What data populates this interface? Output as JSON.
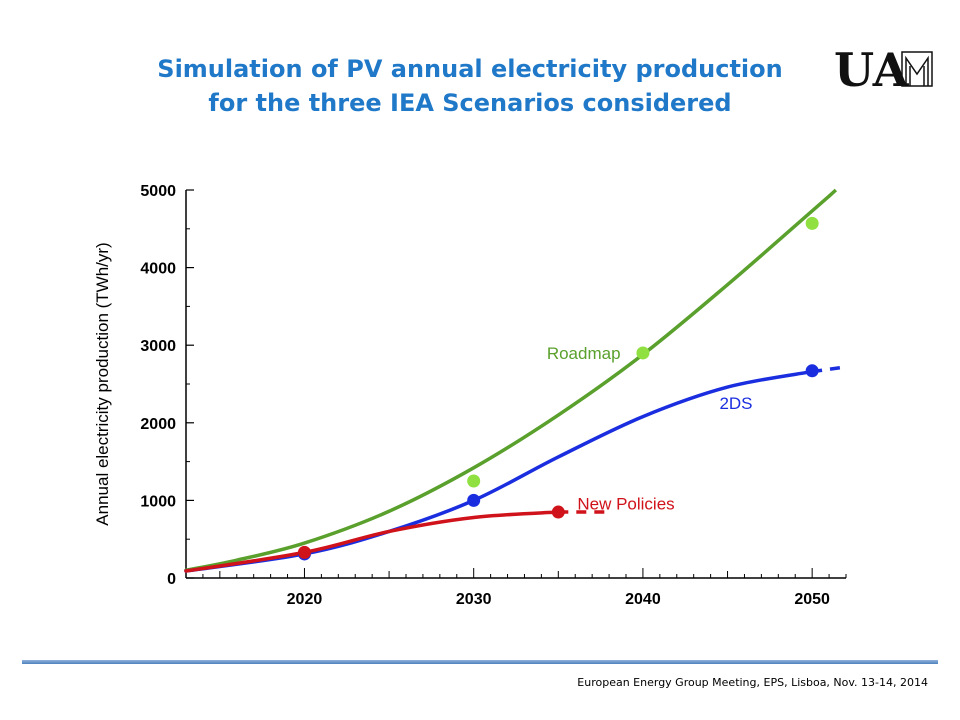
{
  "slide": {
    "title_line1": "Simulation of PV annual electricity  production",
    "title_line2": "for the three IEA Scenarios considered",
    "logo_text": "UAM",
    "footer": "European Energy Group Meeting, EPS, Lisboa, Nov. 13-14, 2014",
    "title_color": "#1f78c8"
  },
  "chart_data": {
    "type": "line",
    "title": "",
    "xlabel": "",
    "ylabel": "Annual electricity production (TWh/yr)",
    "xlim": [
      2013,
      2052
    ],
    "ylim": [
      0,
      5000
    ],
    "x_ticks": [
      2020,
      2030,
      2040,
      2050
    ],
    "y_ticks": [
      0,
      1000,
      2000,
      3000,
      4000,
      5000
    ],
    "grid": false,
    "series": [
      {
        "name": "Roadmap",
        "color": "#5aa02c",
        "marker_color": "#8fe040",
        "curve": [
          [
            2013,
            100
          ],
          [
            2016,
            230
          ],
          [
            2020,
            450
          ],
          [
            2025,
            860
          ],
          [
            2030,
            1420
          ],
          [
            2035,
            2100
          ],
          [
            2040,
            2880
          ],
          [
            2045,
            3780
          ],
          [
            2050,
            4730
          ],
          [
            2051,
            4920
          ]
        ],
        "dashed_tail": [
          [
            2051,
            4920
          ],
          [
            2051.4,
            5000
          ]
        ],
        "points": [
          [
            2030,
            1250
          ],
          [
            2040,
            2900
          ],
          [
            2050,
            4570
          ]
        ]
      },
      {
        "name": "2DS",
        "color": "#1a2ee0",
        "marker_color": "#1a2ee0",
        "curve": [
          [
            2013,
            90
          ],
          [
            2020,
            310
          ],
          [
            2025,
            600
          ],
          [
            2030,
            1000
          ],
          [
            2035,
            1560
          ],
          [
            2040,
            2080
          ],
          [
            2045,
            2460
          ],
          [
            2050,
            2660
          ]
        ],
        "dashed_tail": [
          [
            2050,
            2660
          ],
          [
            2052,
            2720
          ]
        ],
        "points": [
          [
            2020,
            310
          ],
          [
            2030,
            1000
          ],
          [
            2050,
            2670
          ]
        ]
      },
      {
        "name": "New Policies",
        "color": "#d0121a",
        "marker_color": "#d0121a",
        "curve": [
          [
            2013,
            90
          ],
          [
            2020,
            330
          ],
          [
            2025,
            600
          ],
          [
            2030,
            780
          ],
          [
            2035,
            850
          ]
        ],
        "dashed_tail": [
          [
            2035,
            850
          ],
          [
            2038,
            850
          ]
        ],
        "points": [
          [
            2020,
            330
          ],
          [
            2035,
            850
          ]
        ]
      }
    ]
  }
}
